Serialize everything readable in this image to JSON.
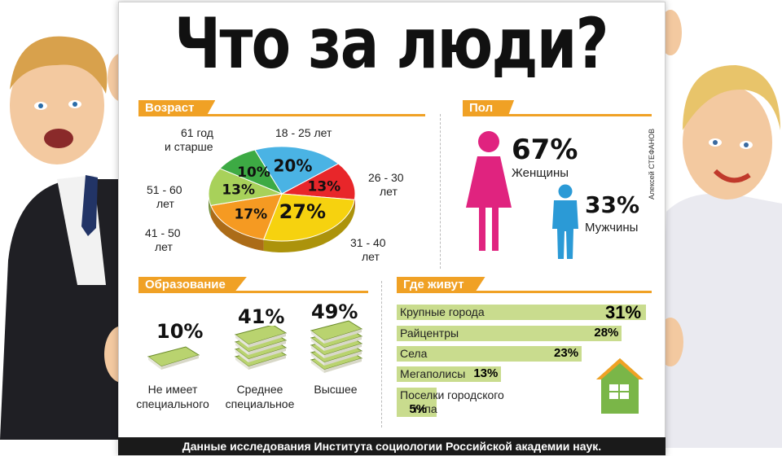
{
  "title": "Что за люди?",
  "credit": "Алексей СТЕФАНОВ",
  "footer": "Данные исследования Института социологии Российской академии наук.",
  "colors": {
    "accent": "#f0a125",
    "female": "#e0237f",
    "male": "#2b9ad6",
    "bar": "#c9dc8e",
    "house": "#7ab648"
  },
  "sections": {
    "age": "Возраст",
    "gender": "Пол",
    "education": "Образование",
    "residence": "Где живут"
  },
  "chart_data": [
    {
      "type": "pie",
      "title": "Возраст",
      "categories": [
        "18 - 25 лет",
        "26 - 30 лет",
        "31 - 40 лет",
        "41 - 50 лет",
        "51 - 60 лет",
        "61 год и старше"
      ],
      "values": [
        20,
        13,
        27,
        17,
        13,
        10
      ],
      "labels": [
        "20%",
        "13%",
        "27%",
        "17%",
        "13%",
        "10%"
      ],
      "colors": [
        "#4ab3e4",
        "#e8262a",
        "#f6d20f",
        "#f59a22",
        "#a8d15a",
        "#3daa44"
      ]
    },
    {
      "type": "bar",
      "title": "Пол",
      "categories": [
        "Женщины",
        "Мужчины"
      ],
      "values": [
        67,
        33
      ],
      "labels": [
        "67%",
        "33%"
      ]
    },
    {
      "type": "bar",
      "title": "Образование",
      "categories": [
        "Не имеет специального",
        "Среднее специальное",
        "Высшее"
      ],
      "values": [
        10,
        41,
        49
      ],
      "labels": [
        "10%",
        "41%",
        "49%"
      ]
    },
    {
      "type": "bar",
      "title": "Где живут",
      "categories": [
        "Крупные города",
        "Райцентры",
        "Села",
        "Мегаполисы",
        "Поселки городского типа"
      ],
      "values": [
        31,
        28,
        23,
        13,
        5
      ],
      "labels": [
        "31%",
        "28%",
        "23%",
        "13%",
        "5%"
      ]
    }
  ],
  "age_labels": [
    "18 - 25 лет",
    "26 - 30",
    "лет",
    "31 - 40",
    "лет",
    "41 - 50",
    "лет",
    "51 - 60",
    "лет",
    "61 год",
    "и старше"
  ],
  "edu_labels": [
    "Не имеет",
    "специального",
    "Среднее",
    "специальное",
    "Высшее"
  ],
  "res_labels": [
    "Крупные города",
    "Райцентры",
    "Села",
    "Мегаполисы",
    "Поселки городского",
    "типа"
  ]
}
